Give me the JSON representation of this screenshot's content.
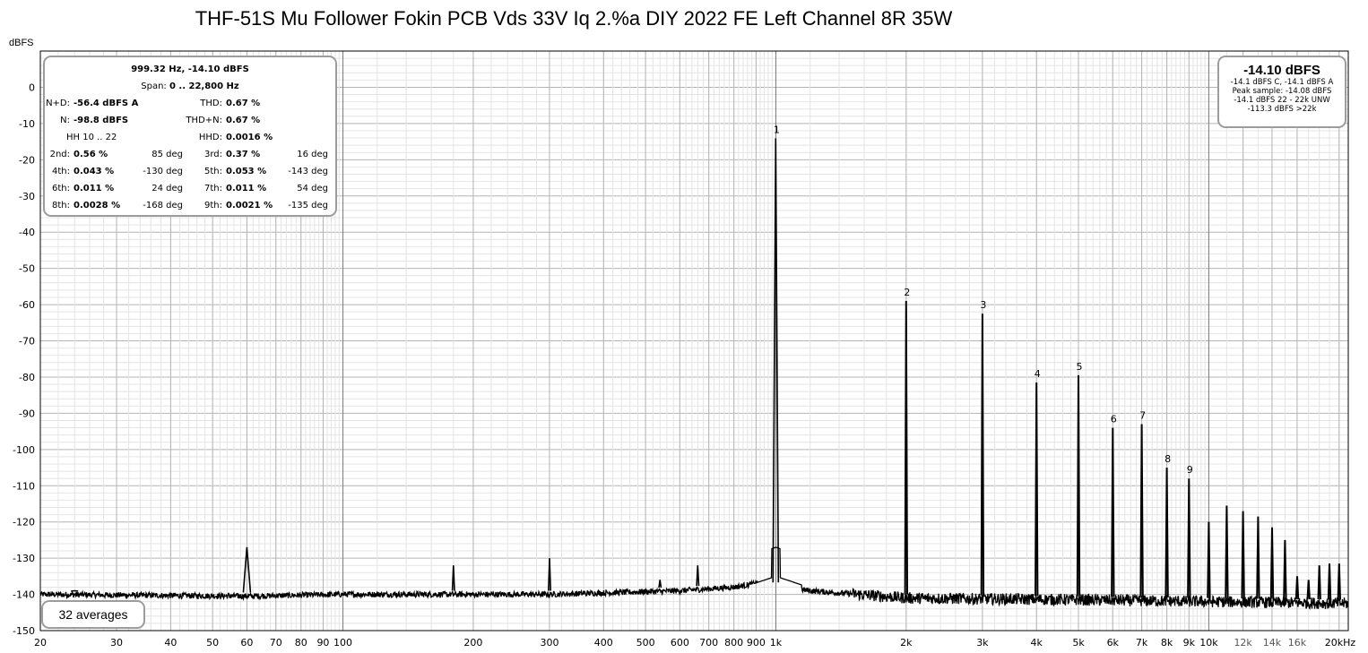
{
  "title": "THF-51S Mu Follower Fokin PCB Vds 33V Iq 2.%a DIY 2022 FE Left Channel 8R 35W",
  "y_unit": "dBFS",
  "readout": {
    "header1": "999.32 Hz, -14.10 dBFS",
    "header2_label": "Span:",
    "header2_value": "0 .. 22,800 Hz",
    "nd_label": "N+D:",
    "nd_value": "-56.4 dBFS A",
    "thd_label": "THD:",
    "thd_value": "0.67 %",
    "n_label": "N:",
    "n_value": "-98.8 dBFS",
    "thdn_label": "THD+N:",
    "thdn_value": "0.67 %",
    "hh_label": "HH 10 .. 22",
    "hhd_label": "HHD:",
    "hhd_value": "0.0016 %",
    "harmonics": [
      {
        "l_label": "2nd:",
        "l_val": "0.56 %",
        "l_deg": "85 deg",
        "r_label": "3rd:",
        "r_val": "0.37 %",
        "r_deg": "16 deg"
      },
      {
        "l_label": "4th:",
        "l_val": "0.043 %",
        "l_deg": "-130 deg",
        "r_label": "5th:",
        "r_val": "0.053 %",
        "r_deg": "-143 deg"
      },
      {
        "l_label": "6th:",
        "l_val": "0.011 %",
        "l_deg": "24 deg",
        "r_label": "7th:",
        "r_val": "0.011 %",
        "r_deg": "54 deg"
      },
      {
        "l_label": "8th:",
        "l_val": "0.0028 %",
        "l_deg": "-168 deg",
        "r_label": "9th:",
        "r_val": "0.0021 %",
        "r_deg": "-135 deg"
      }
    ]
  },
  "level_box": {
    "main": "-14.10 dBFS",
    "lines": [
      "-14.1 dBFS C, -14.1 dBFS A",
      "Peak sample: -14.08 dBFS",
      "-14.1 dBFS 22 - 22k UNW",
      "-113.3 dBFS >22k"
    ]
  },
  "averages": "32 averages",
  "chart_data": {
    "type": "line",
    "title": "THF-51S Mu Follower Fokin PCB Vds 33V Iq 2.%a DIY 2022 FE Left Channel 8R 35W",
    "xlabel": "",
    "ylabel": "dBFS",
    "x_scale": "log",
    "xlim": [
      20,
      21000
    ],
    "ylim": [
      -150,
      10
    ],
    "grid": true,
    "x_ticks": [
      {
        "v": 20,
        "label": "20"
      },
      {
        "v": 30,
        "label": "30"
      },
      {
        "v": 40,
        "label": "40"
      },
      {
        "v": 50,
        "label": "50"
      },
      {
        "v": 60,
        "label": "60"
      },
      {
        "v": 70,
        "label": "70"
      },
      {
        "v": 80,
        "label": "80"
      },
      {
        "v": 90,
        "label": "90"
      },
      {
        "v": 100,
        "label": "100"
      },
      {
        "v": 200,
        "label": "200"
      },
      {
        "v": 300,
        "label": "300"
      },
      {
        "v": 400,
        "label": "400"
      },
      {
        "v": 500,
        "label": "500"
      },
      {
        "v": 600,
        "label": "600"
      },
      {
        "v": 700,
        "label": "700"
      },
      {
        "v": 800,
        "label": "800"
      },
      {
        "v": 900,
        "label": "900"
      },
      {
        "v": 1000,
        "label": "1k"
      },
      {
        "v": 2000,
        "label": "2k"
      },
      {
        "v": 3000,
        "label": "3k"
      },
      {
        "v": 4000,
        "label": "4k"
      },
      {
        "v": 5000,
        "label": "5k"
      },
      {
        "v": 6000,
        "label": "6k"
      },
      {
        "v": 7000,
        "label": "7k"
      },
      {
        "v": 8000,
        "label": "8k"
      },
      {
        "v": 9000,
        "label": "9k"
      },
      {
        "v": 10000,
        "label": "10k"
      },
      {
        "v": 12000,
        "label": "12k"
      },
      {
        "v": 14000,
        "label": "14k"
      },
      {
        "v": 16000,
        "label": "16k"
      },
      {
        "v": 20000,
        "label": "20kHz"
      }
    ],
    "y_ticks": [
      0,
      -10,
      -20,
      -30,
      -40,
      -50,
      -60,
      -70,
      -80,
      -90,
      -100,
      -110,
      -120,
      -130,
      -140,
      -150
    ],
    "noise_floor": [
      [
        20,
        -140
      ],
      [
        60,
        -140.5
      ],
      [
        100,
        -140
      ],
      [
        300,
        -140
      ],
      [
        600,
        -139
      ],
      [
        800,
        -138
      ],
      [
        900,
        -137
      ],
      [
        1200,
        -139
      ],
      [
        2000,
        -141
      ],
      [
        5000,
        -141.5
      ],
      [
        10000,
        -142
      ],
      [
        21000,
        -142.5
      ]
    ],
    "peaks": [
      {
        "label": "",
        "x": 24,
        "y": -139
      },
      {
        "label": "",
        "x": 60,
        "y": -127
      },
      {
        "label": "",
        "x": 180,
        "y": -132
      },
      {
        "label": "",
        "x": 300,
        "y": -130
      },
      {
        "label": "",
        "x": 540,
        "y": -136
      },
      {
        "label": "",
        "x": 660,
        "y": -132
      },
      {
        "label": "1",
        "x": 999.32,
        "y": -14.1
      },
      {
        "label": "2",
        "x": 2000,
        "y": -59
      },
      {
        "label": "3",
        "x": 3000,
        "y": -62.5
      },
      {
        "label": "4",
        "x": 4000,
        "y": -81.5
      },
      {
        "label": "5",
        "x": 5000,
        "y": -79.5
      },
      {
        "label": "6",
        "x": 6000,
        "y": -94
      },
      {
        "label": "7",
        "x": 7000,
        "y": -93
      },
      {
        "label": "8",
        "x": 8000,
        "y": -105
      },
      {
        "label": "9",
        "x": 9000,
        "y": -108
      },
      {
        "label": "",
        "x": 10000,
        "y": -120
      },
      {
        "label": "",
        "x": 11000,
        "y": -115.5
      },
      {
        "label": "",
        "x": 12000,
        "y": -117
      },
      {
        "label": "",
        "x": 13000,
        "y": -118.5
      },
      {
        "label": "",
        "x": 14000,
        "y": -121.5
      },
      {
        "label": "",
        "x": 15000,
        "y": -125
      },
      {
        "label": "",
        "x": 16000,
        "y": -135
      },
      {
        "label": "",
        "x": 17000,
        "y": -136
      },
      {
        "label": "",
        "x": 18000,
        "y": -132
      },
      {
        "label": "",
        "x": 19000,
        "y": -131.5
      },
      {
        "label": "",
        "x": 20000,
        "y": -131.5
      }
    ]
  },
  "colors": {
    "trace": "#000000",
    "grid_minor": "#e2e2e2",
    "grid_major": "#9a9a9a",
    "panel_border": "#9c9c9c"
  }
}
